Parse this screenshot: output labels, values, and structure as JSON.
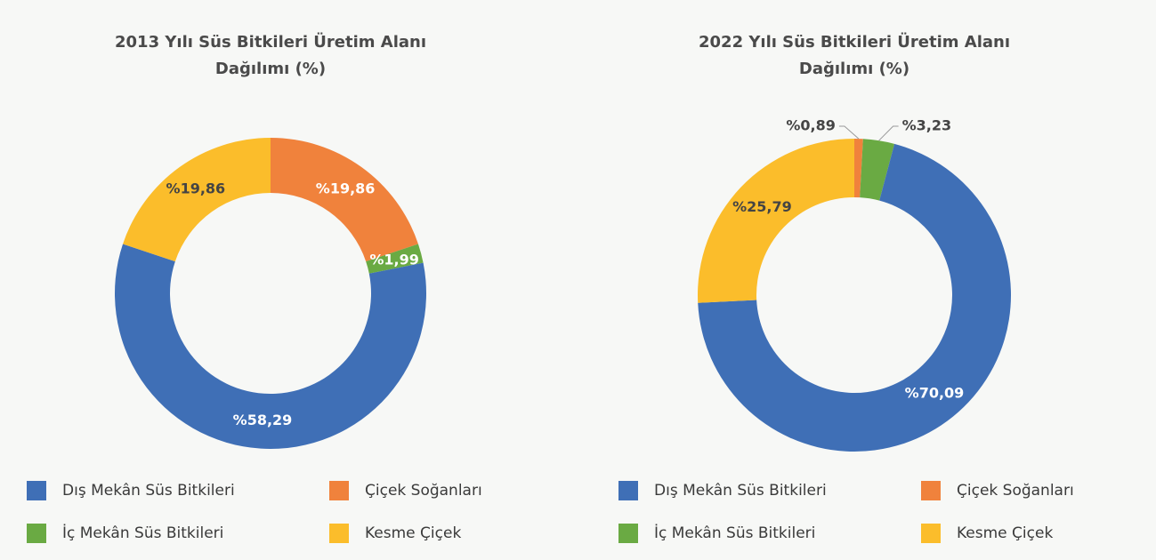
{
  "chart_data": [
    {
      "type": "donut",
      "title": "2013 Yılı Süs Bitkileri Üretim Alanı Dağılımı (%)",
      "categories": [
        "Dış Mekân Süs Bitkileri",
        "Çiçek Soğanları",
        "İç Mekân Süs Bitkileri",
        "Kesme Çiçek"
      ],
      "values": [
        58.29,
        19.86,
        1.99,
        19.86
      ],
      "value_labels": [
        "%58,29",
        "%19,86",
        "%1,99",
        "%19,86"
      ],
      "colors": [
        "#3f6fb6",
        "#f0823c",
        "#6aaa43",
        "#fbbd2b"
      ]
    },
    {
      "type": "donut",
      "title": "2022 Yılı Süs Bitkileri Üretim Alanı Dağılımı (%)",
      "categories": [
        "Dış Mekân Süs Bitkileri",
        "Çiçek Soğanları",
        "İç Mekân Süs Bitkileri",
        "Kesme Çiçek"
      ],
      "values": [
        70.09,
        0.89,
        3.23,
        25.79
      ],
      "value_labels": [
        "%70,09",
        "%0,89",
        "%3,23",
        "%25,79"
      ],
      "colors": [
        "#3f6fb6",
        "#f0823c",
        "#6aaa43",
        "#fbbd2b"
      ]
    }
  ]
}
